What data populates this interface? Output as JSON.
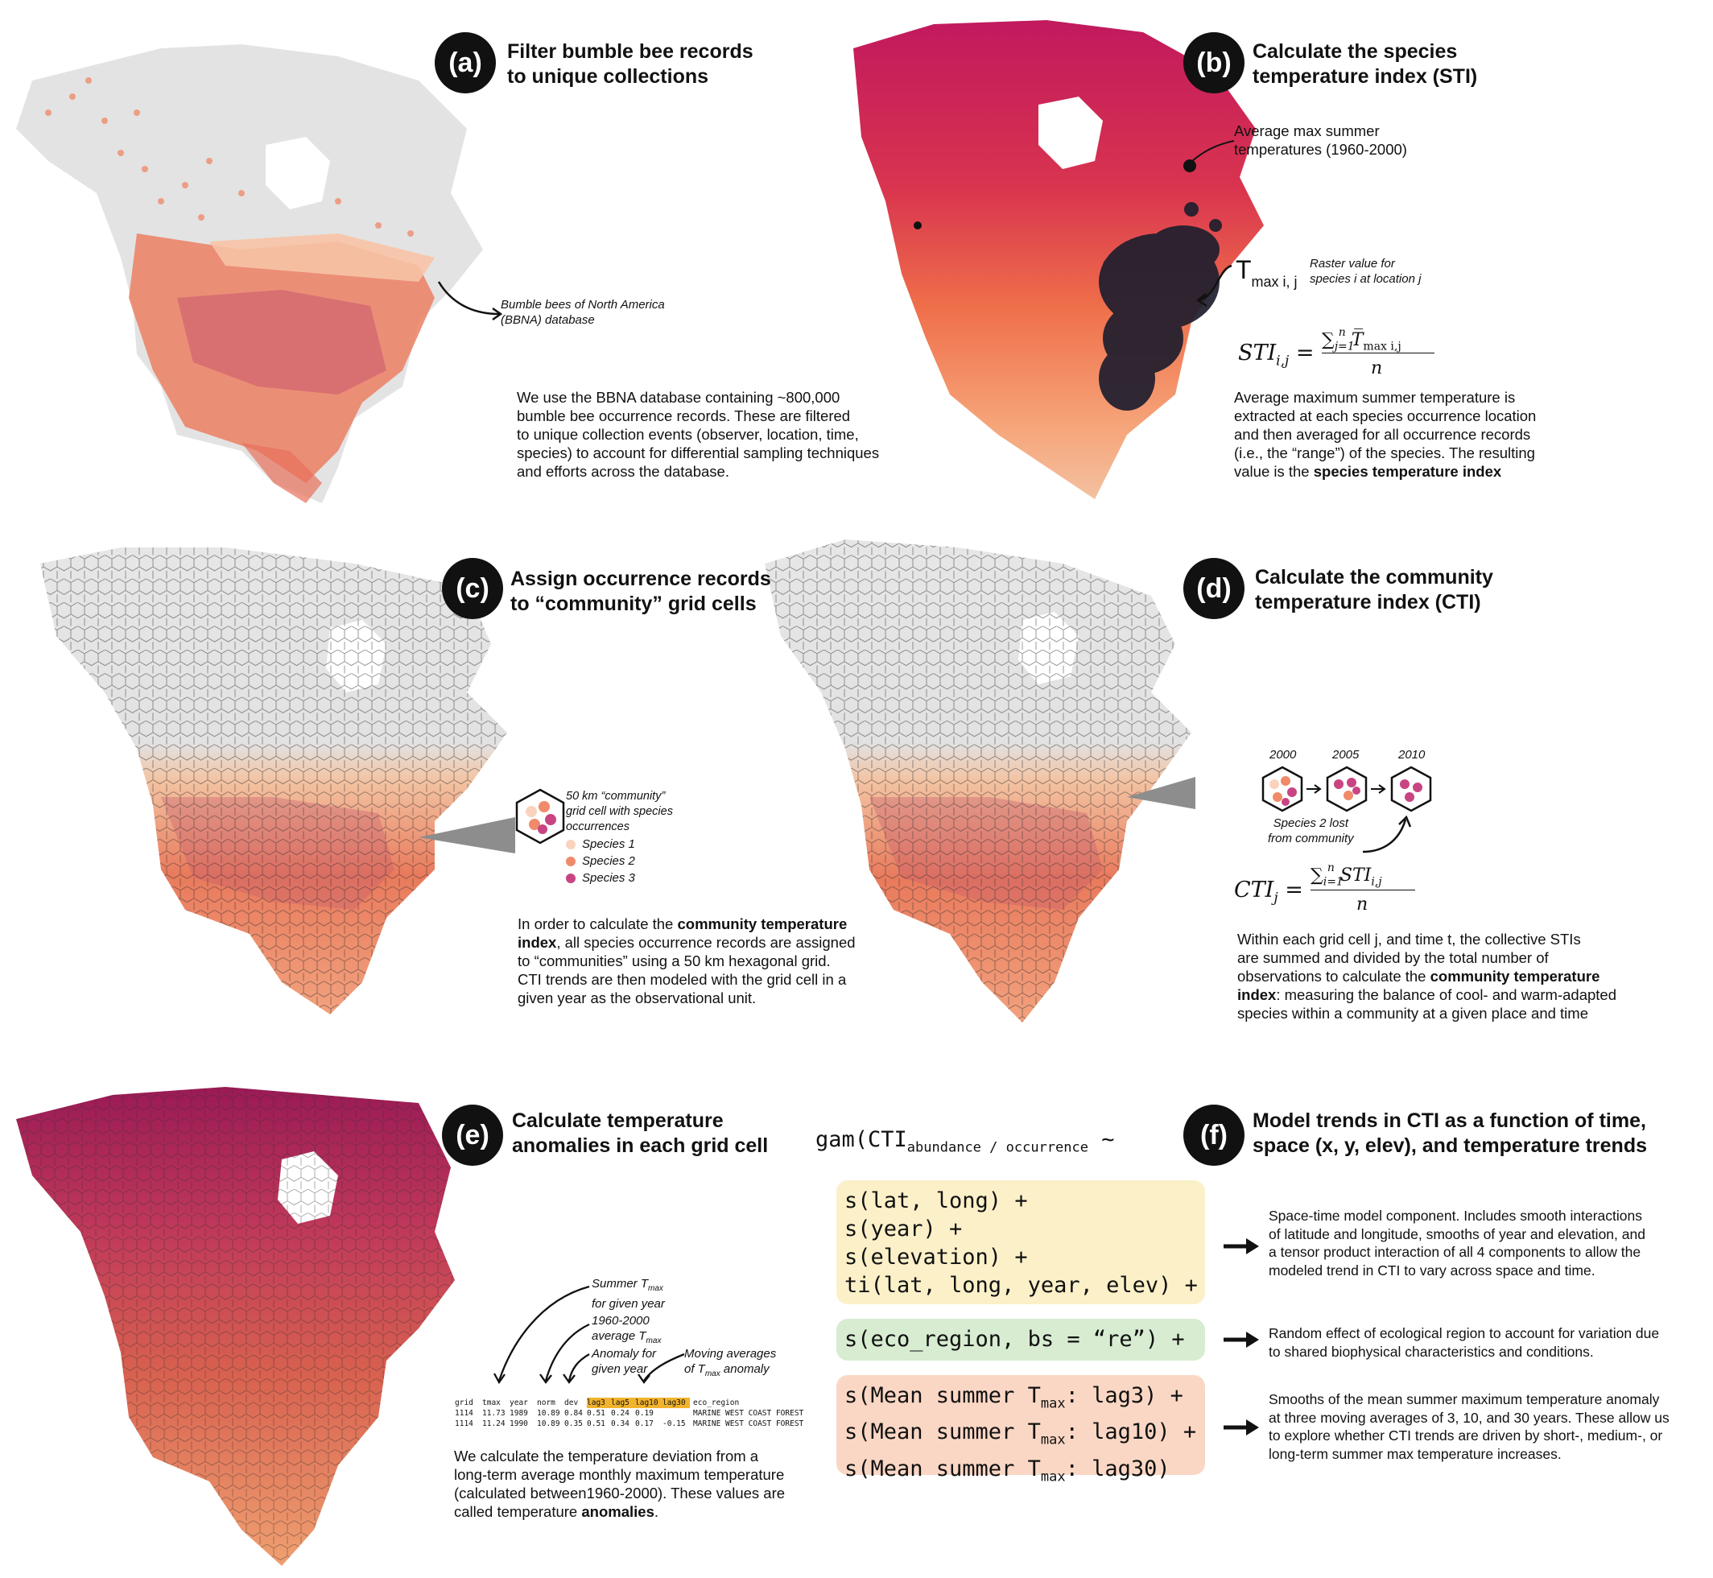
{
  "panels": {
    "a": {
      "label": "(a)",
      "title": [
        "Filter bumble bee records",
        "to unique collections"
      ],
      "annotation": [
        "Bumble bees of North America",
        "(BBNA) database"
      ],
      "body": [
        "We use the BBNA database containing ~800,000",
        "bumble bee occurrence records. These are filtered",
        "to unique collection events (observer, location, time,",
        "species) to account for differential sampling techniques",
        "and efforts across the database."
      ]
    },
    "b": {
      "label": "(b)",
      "title": [
        "Calculate the species",
        "temperature index (STI)"
      ],
      "annotation": [
        "Average max summer",
        "temperatures (1960-2000)"
      ],
      "tmax_main": "T",
      "tmax_sub": "max i, j",
      "raster_note": [
        "Raster value for",
        "species i at location j"
      ],
      "formula_lhs": "STI",
      "formula_lhs_sub": "i,j",
      "formula_num": "∑",
      "formula_num_sup": "n",
      "formula_num_sub": "j=1",
      "formula_num_term": "T̅",
      "formula_num_term_sub": "max i,j",
      "formula_den": "n",
      "body": [
        "Average maximum summer temperature is",
        "extracted at each species occurrence location",
        "and then averaged for all occurrence records",
        "(i.e., the “range”) of the species. The resulting"
      ],
      "body_last_plain": "value is the ",
      "body_last_bold": "species temperature index"
    },
    "c": {
      "label": "(c)",
      "title": [
        "Assign occurrence records",
        "to “community” grid cells"
      ],
      "cell_note": [
        "50 km “community”",
        "grid cell with species",
        "occurrences"
      ],
      "legend": [
        {
          "name": "Species 1",
          "color": "#f9d3bd"
        },
        {
          "name": "Species 2",
          "color": "#ef8a6a"
        },
        {
          "name": "Species 3",
          "color": "#c84482"
        }
      ],
      "body_1_plain": "In order to calculate the ",
      "body_1_bold": "community temperature",
      "body_2_bold": "index",
      "body_2_plain": ", all species occurrence records are assigned",
      "body_rest": [
        "to “communities” using a 50 km hexagonal grid.",
        "CTI trends are then modeled with the grid cell in a",
        "given year as the observational unit."
      ]
    },
    "d": {
      "label": "(d)",
      "title": [
        "Calculate the community",
        "temperature index (CTI)"
      ],
      "years": [
        "2000",
        "2005",
        "2010"
      ],
      "lost_note": [
        "Species 2 lost",
        "from community"
      ],
      "formula_lhs": "CTI",
      "formula_lhs_sub": "j",
      "formula_num": "∑",
      "formula_num_sup": "n",
      "formula_num_sub": "i=1",
      "formula_num_term": "STI",
      "formula_num_term_sub": "i,j",
      "formula_den": "n",
      "body": [
        "Within each grid cell j, and time t, the collective STIs",
        "are summed and divided by the total number of"
      ],
      "body_3_plain": "observations to calculate the ",
      "body_3_bold": "community temperature",
      "body_4_bold": "index",
      "body_4_plain": ": measuring the balance of cool- and warm-adapted",
      "body_5": "species within a community at a given place and time"
    },
    "e": {
      "label": "(e)",
      "title": [
        "Calculate temperature",
        "anomalies in each grid cell"
      ],
      "callouts": {
        "summer": [
          "Summer T",
          "max",
          "for given year"
        ],
        "norm": [
          "1960-2000",
          "average T",
          "max"
        ],
        "anomaly": [
          "Anomaly for",
          "given year"
        ],
        "moving": [
          "Moving averages",
          "of T",
          "max",
          " anomaly"
        ]
      },
      "table": {
        "headers": [
          "grid",
          "tmax",
          "year",
          "norm",
          "dev",
          "lag3",
          "lag5",
          "lag10",
          "lag30",
          "eco_region"
        ],
        "rows": [
          [
            "1114",
            "11.73",
            "1989",
            "10.89",
            "0.84",
            "0.51",
            "0.24",
            "0.19",
            "",
            "MARINE WEST COAST FOREST"
          ],
          [
            "1114",
            "11.24",
            "1990",
            "10.89",
            "0.35",
            "0.51",
            "0.34",
            "0.17",
            "-0.15",
            "MARINE WEST COAST FOREST"
          ]
        ]
      },
      "body": [
        "We calculate the temperature deviation from a",
        "long-term average monthly maximum temperature",
        "(calculated between1960-2000). These values are"
      ],
      "body_last_plain": "called temperature ",
      "body_last_bold": "anomalies",
      "body_last_end": "."
    },
    "f": {
      "label": "(f)",
      "title": [
        "Model trends in CTI as a function of time,",
        "space (x, y, elev), and temperature trends"
      ],
      "gam_head": "gam(CTI",
      "gam_sub": "abundance / occurrence",
      "gam_tail": " ~",
      "box1": {
        "lines": [
          "s(lat, long) +",
          "s(year) +",
          "s(elevation) +",
          "ti(lat, long, year, elev) +"
        ],
        "color": "#fbf0c8"
      },
      "box2": {
        "lines": [
          "s(eco_region, bs = “re”) +"
        ],
        "color": "#d7ecd1"
      },
      "box3": {
        "color": "#fad7c4",
        "lines": [
          {
            "pre": "s(Mean summer T",
            "sub": "max",
            "post": ": lag3) +"
          },
          {
            "pre": "s(Mean summer T",
            "sub": "max",
            "post": ": lag10) +"
          },
          {
            "pre": "s(Mean summer T",
            "sub": "max",
            "post": ": lag30)"
          }
        ]
      },
      "desc1": [
        "Space-time model component. Includes smooth interactions",
        "of latitude and longitude, smooths of year and elevation, and",
        "a tensor product interaction of all 4 components to allow the",
        "modeled trend in CTI to vary across space and time."
      ],
      "desc2": [
        "Random effect of ecological region to account for variation due",
        "to shared biophysical characteristics and conditions."
      ],
      "desc3": [
        "Smooths of the mean summer maximum temperature anomaly",
        "at three moving averages of 3, 10, and 30 years. These allow us",
        "to explore whether CTI trends are driven by short-, medium-, or",
        "long-term summer max temperature increases."
      ]
    }
  },
  "colors": {
    "badge": "#111111",
    "land_grey": "#dedede",
    "heat_high": "#c0185a",
    "heat_mid": "#ef6a4a",
    "heat_low": "#f9c7a3"
  }
}
